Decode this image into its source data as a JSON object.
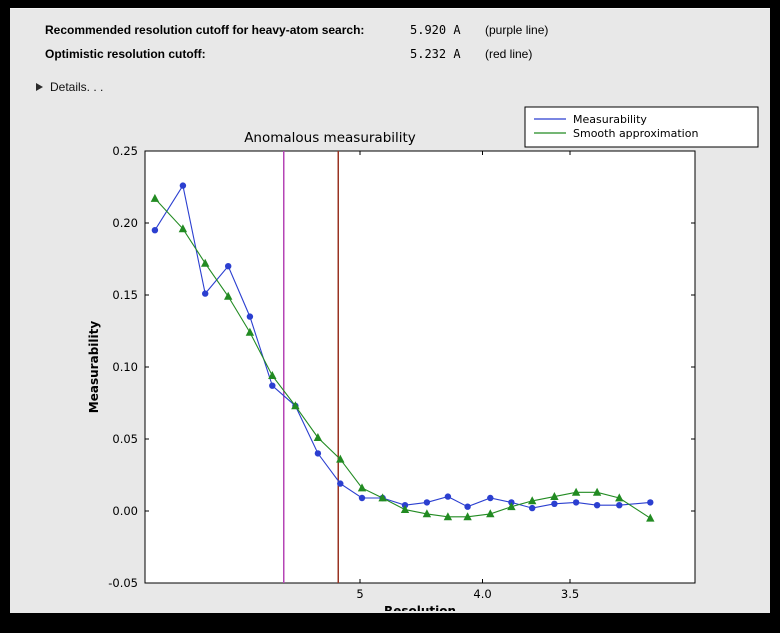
{
  "header": {
    "rows": [
      {
        "label": "Recommended resolution cutoff for heavy-atom search:",
        "value": "5.920 A",
        "note": "(purple line)"
      },
      {
        "label": "Optimistic resolution cutoff:",
        "value": "5.232 A",
        "note": "(red line)"
      }
    ],
    "details_label": "Details. . ."
  },
  "chart_data": {
    "type": "line",
    "title": "Anomalous measurability",
    "xlabel": "Resolution",
    "ylabel": "Measurability",
    "x_axis": {
      "scale": "inverse_resolution",
      "left_d": 8.91,
      "right_d": 2.97,
      "ticks": [
        {
          "d": 5.0,
          "label": "5"
        },
        {
          "d": 4.0,
          "label": "4.0"
        },
        {
          "d": 3.5,
          "label": "3.5"
        }
      ]
    },
    "y_axis": {
      "min": -0.05,
      "max": 0.25,
      "ticks": [
        {
          "v": 0.25,
          "label": "0.25"
        },
        {
          "v": 0.2,
          "label": "0.20"
        },
        {
          "v": 0.15,
          "label": "0.15"
        },
        {
          "v": 0.1,
          "label": "0.10"
        },
        {
          "v": 0.05,
          "label": "0.05"
        },
        {
          "v": 0.0,
          "label": "0.00"
        },
        {
          "v": -0.05,
          "label": "-0.05"
        }
      ]
    },
    "resolution_d": [
      8.6,
      7.83,
      7.31,
      6.84,
      6.45,
      6.09,
      5.76,
      5.47,
      5.21,
      4.98,
      4.78,
      4.58,
      4.4,
      4.24,
      4.1,
      3.95,
      3.82,
      3.7,
      3.58,
      3.47,
      3.37,
      3.27,
      3.14
    ],
    "series": [
      {
        "name": "Measurability",
        "color": "#2b3fd0",
        "marker": "circle",
        "values": [
          0.195,
          0.226,
          0.151,
          0.17,
          0.135,
          0.087,
          0.073,
          0.04,
          0.019,
          0.009,
          0.009,
          0.004,
          0.006,
          0.01,
          0.003,
          0.009,
          0.006,
          0.002,
          0.005,
          0.006,
          0.004,
          0.004,
          0.006
        ]
      },
      {
        "name": "Smooth approximation",
        "color": "#228b22",
        "marker": "triangle",
        "values": [
          0.217,
          0.196,
          0.172,
          0.149,
          0.124,
          0.094,
          0.073,
          0.051,
          0.036,
          0.016,
          0.009,
          0.001,
          -0.002,
          -0.004,
          -0.004,
          -0.002,
          0.003,
          0.007,
          0.01,
          0.013,
          0.013,
          0.009,
          -0.005
        ]
      }
    ],
    "vlines": [
      {
        "d": 5.92,
        "color": "#b544b5",
        "name": "recommended-cutoff"
      },
      {
        "d": 5.232,
        "color": "#993322",
        "name": "optimistic-cutoff"
      }
    ],
    "legend": {
      "position": "top-right"
    }
  }
}
